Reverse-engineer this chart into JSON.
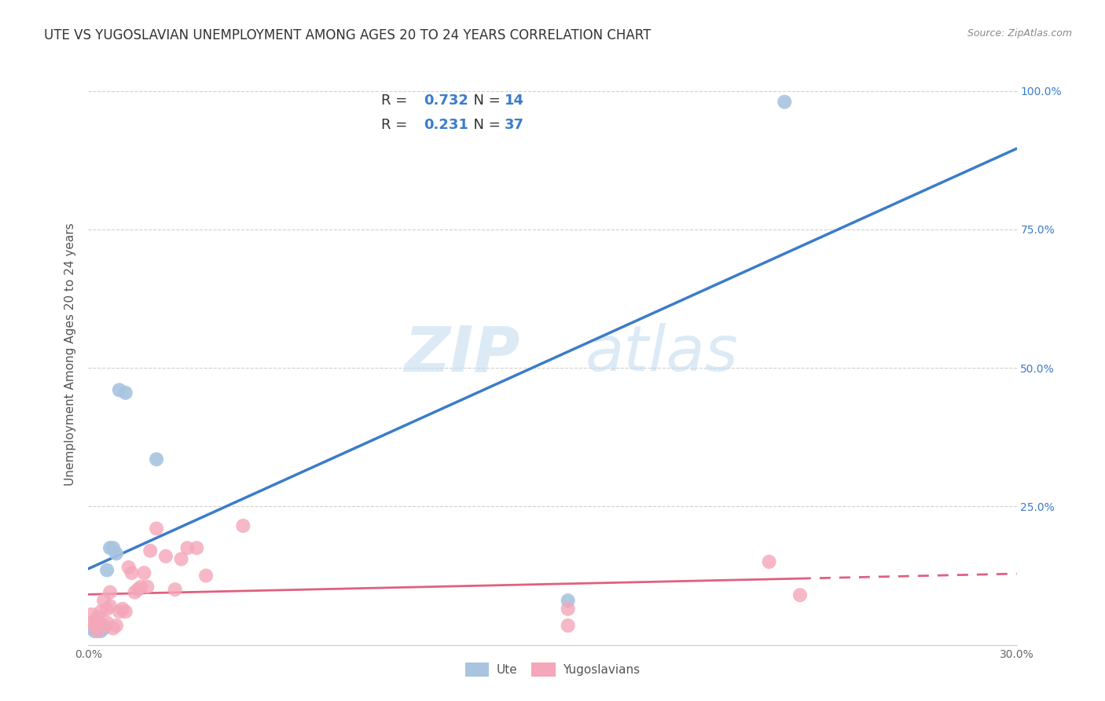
{
  "title": "UTE VS YUGOSLAVIAN UNEMPLOYMENT AMONG AGES 20 TO 24 YEARS CORRELATION CHART",
  "source": "Source: ZipAtlas.com",
  "ylabel": "Unemployment Among Ages 20 to 24 years",
  "xlim": [
    0.0,
    0.3
  ],
  "ylim": [
    0.0,
    1.05
  ],
  "yticks": [
    0.0,
    0.25,
    0.5,
    0.75,
    1.0
  ],
  "ytick_labels": [
    "",
    "25.0%",
    "50.0%",
    "75.0%",
    "100.0%"
  ],
  "xticks": [
    0.0,
    0.05,
    0.1,
    0.15,
    0.2,
    0.25,
    0.3
  ],
  "xtick_labels": [
    "0.0%",
    "",
    "",
    "",
    "",
    "",
    "30.0%"
  ],
  "ute_color": "#a8c4e0",
  "yug_color": "#f4a7b9",
  "ute_line_color": "#3b7cc9",
  "yug_line_color": "#e06080",
  "ute_R": "0.732",
  "ute_N": "14",
  "yug_R": "0.231",
  "yug_N": "37",
  "watermark_zip": "ZIP",
  "watermark_atlas": "atlas",
  "ute_points_x": [
    0.001,
    0.002,
    0.003,
    0.004,
    0.005,
    0.006,
    0.007,
    0.008,
    0.009,
    0.01,
    0.012,
    0.022,
    0.155,
    0.225
  ],
  "ute_points_y": [
    0.03,
    0.025,
    0.04,
    0.025,
    0.03,
    0.135,
    0.175,
    0.175,
    0.165,
    0.46,
    0.455,
    0.335,
    0.08,
    0.98
  ],
  "yug_points_x": [
    0.001,
    0.001,
    0.002,
    0.003,
    0.003,
    0.004,
    0.005,
    0.005,
    0.006,
    0.006,
    0.007,
    0.007,
    0.008,
    0.009,
    0.01,
    0.011,
    0.012,
    0.013,
    0.014,
    0.015,
    0.016,
    0.017,
    0.018,
    0.019,
    0.02,
    0.022,
    0.025,
    0.028,
    0.03,
    0.032,
    0.035,
    0.038,
    0.05,
    0.155,
    0.155,
    0.22,
    0.23
  ],
  "yug_points_y": [
    0.04,
    0.055,
    0.035,
    0.025,
    0.05,
    0.06,
    0.035,
    0.08,
    0.04,
    0.065,
    0.07,
    0.095,
    0.03,
    0.035,
    0.06,
    0.065,
    0.06,
    0.14,
    0.13,
    0.095,
    0.1,
    0.105,
    0.13,
    0.105,
    0.17,
    0.21,
    0.16,
    0.1,
    0.155,
    0.175,
    0.175,
    0.125,
    0.215,
    0.035,
    0.065,
    0.15,
    0.09
  ],
  "legend_label_ute": "Ute",
  "legend_label_yug": "Yugoslavians",
  "background_color": "#ffffff",
  "grid_color": "#cccccc",
  "right_axis_color": "#3b7cc9",
  "title_color": "#333333",
  "title_fontsize": 12,
  "label_fontsize": 11,
  "annot_color_label": "#444444",
  "annot_color_value": "#3b7cc9"
}
